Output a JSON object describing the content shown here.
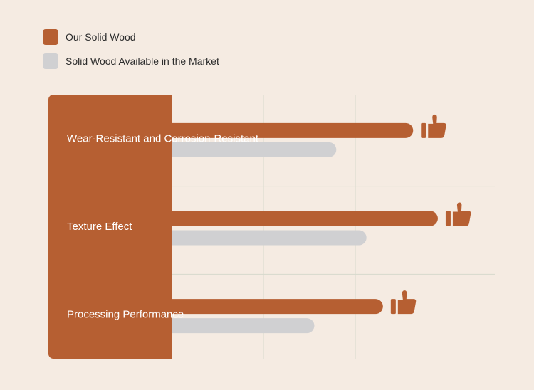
{
  "legend": {
    "items": [
      {
        "label": "Our Solid Wood",
        "color": "#b65f32"
      },
      {
        "label": "Solid Wood Available in the Market",
        "color": "#d0d0d2"
      }
    ]
  },
  "icon": "thumbs-up-icon",
  "colors": {
    "background": "#f5ebe2",
    "accent": "#b65f32",
    "market": "#d0d0d2",
    "grid": "#d6d9cc"
  },
  "chart_data": {
    "type": "bar",
    "orientation": "horizontal",
    "categories": [
      "Wear-Resistant and Corrosion-Resistant",
      "Texture Effect",
      "Processing Performance"
    ],
    "series": [
      {
        "name": "Our Solid Wood",
        "values": [
          88,
          97,
          77
        ]
      },
      {
        "name": "Solid Wood Available in the Market",
        "values": [
          60,
          71,
          52
        ]
      }
    ],
    "xlim": [
      0,
      120
    ],
    "grid": true,
    "legend_position": "top-left",
    "highlight_icon": "thumbs-up-icon"
  }
}
